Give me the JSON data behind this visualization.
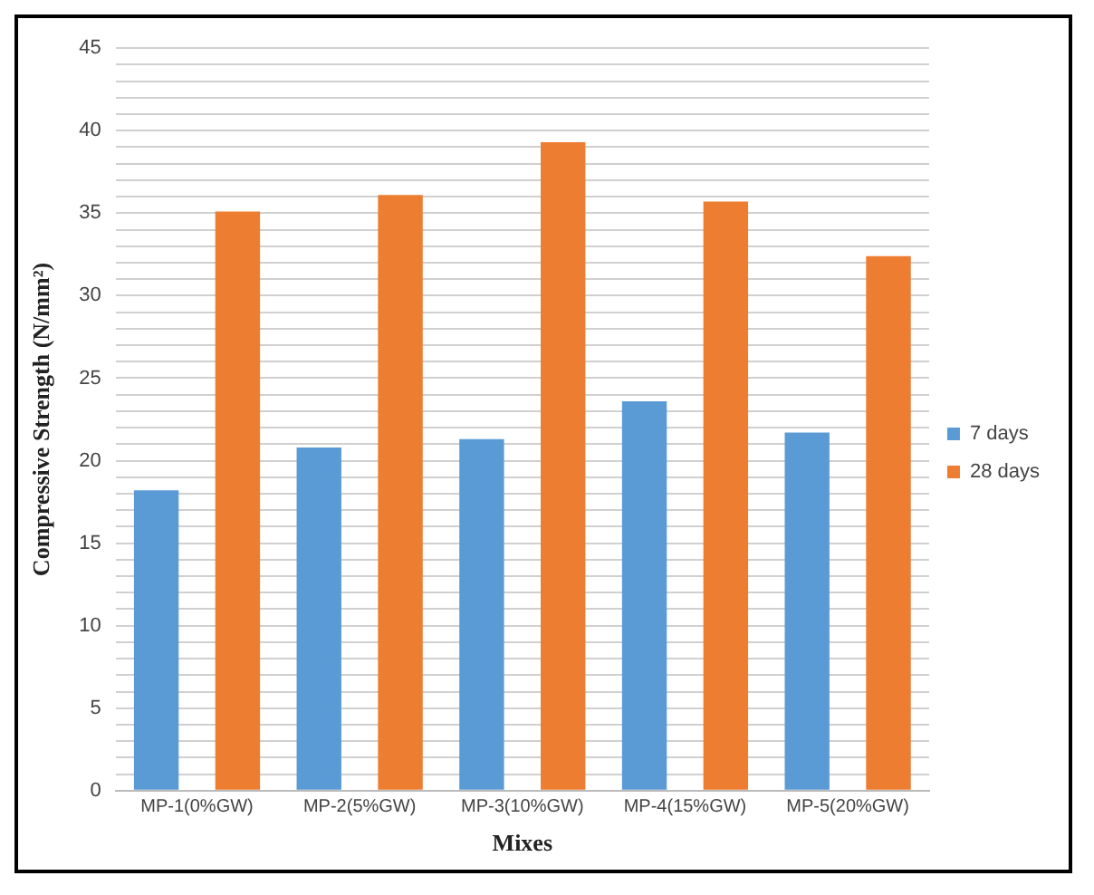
{
  "chart_data": {
    "type": "bar",
    "xlabel": "Mixes",
    "ylabel": "Compressive Strength (N/mm²)",
    "categories": [
      "MP-1(0%GW)",
      "MP-2(5%GW)",
      "MP-3(10%GW)",
      "MP-4(15%GW)",
      "MP-5(20%GW)"
    ],
    "series": [
      {
        "name": "7 days",
        "color": "#5b9bd5",
        "values": [
          18.2,
          20.8,
          21.3,
          23.6,
          21.7
        ]
      },
      {
        "name": "28 days",
        "color": "#ed7d31",
        "values": [
          35.1,
          36.1,
          39.3,
          35.7,
          32.4
        ]
      }
    ],
    "ylim": [
      0,
      45
    ],
    "yticks": [
      0,
      {
        "value": 1,
        "label": null
      },
      {
        "value": 2,
        "label": null
      },
      {
        "value": 3,
        "label": null
      },
      {
        "value": 4,
        "label": null
      },
      5,
      {
        "value": 6,
        "label": null
      },
      {
        "value": 7,
        "label": null
      },
      {
        "value": 8,
        "label": null
      },
      {
        "value": 9,
        "label": null
      },
      10,
      {
        "value": 11,
        "label": null
      },
      {
        "value": 12,
        "label": null
      },
      {
        "value": 13,
        "label": null
      },
      {
        "value": 14,
        "label": null
      },
      15,
      {
        "value": 16,
        "label": null
      },
      {
        "value": 17,
        "label": null
      },
      {
        "value": 18,
        "label": null
      },
      {
        "value": 19,
        "label": null
      },
      20,
      {
        "value": 21,
        "label": null
      },
      {
        "value": 22,
        "label": null
      },
      {
        "value": 23,
        "label": null
      },
      {
        "value": 24,
        "label": null
      },
      25,
      {
        "value": 26,
        "label": null
      },
      {
        "value": 27,
        "label": null
      },
      {
        "value": 28,
        "label": null
      },
      {
        "value": 29,
        "label": null
      },
      30,
      {
        "value": 31,
        "label": null
      },
      {
        "value": 32,
        "label": null
      },
      {
        "value": 33,
        "label": null
      },
      {
        "value": 34,
        "label": null
      },
      35,
      {
        "value": 36,
        "label": null
      },
      {
        "value": 37,
        "label": null
      },
      {
        "value": 38,
        "label": null
      },
      {
        "value": 39,
        "label": null
      },
      40,
      {
        "value": 41,
        "label": null
      },
      {
        "value": 42,
        "label": null
      },
      {
        "value": 43,
        "label": null
      },
      {
        "value": 44,
        "label": null
      },
      45
    ],
    "grid": "y",
    "legend": "right"
  }
}
